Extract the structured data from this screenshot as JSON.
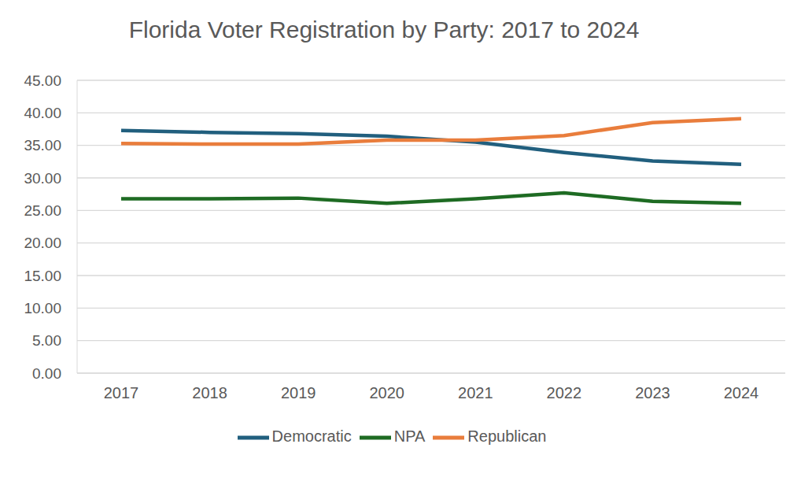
{
  "chart_data": {
    "type": "line",
    "title": "Florida Voter Registration by Party:  2017 to 2024",
    "categories": [
      "2017",
      "2018",
      "2019",
      "2020",
      "2021",
      "2022",
      "2023",
      "2024"
    ],
    "series": [
      {
        "name": "Democratic",
        "color": "#215f7e",
        "values": [
          37.3,
          37.0,
          36.8,
          36.4,
          35.5,
          33.9,
          32.6,
          32.1
        ]
      },
      {
        "name": "Republican",
        "color": "#e97d3c",
        "values": [
          35.3,
          35.2,
          35.2,
          35.8,
          35.8,
          36.5,
          38.5,
          39.1
        ]
      },
      {
        "name": "NPA",
        "color": "#1e6b23",
        "values": [
          26.8,
          26.8,
          26.9,
          26.1,
          26.8,
          27.7,
          26.4,
          26.1
        ]
      }
    ],
    "ylim": [
      0,
      45
    ],
    "yticks": [
      {
        "value": 0,
        "label": "0.00"
      },
      {
        "value": 5,
        "label": "5.00"
      },
      {
        "value": 10,
        "label": "10.00"
      },
      {
        "value": 15,
        "label": "15.00"
      },
      {
        "value": 20,
        "label": "20.00"
      },
      {
        "value": 25,
        "label": "25.00"
      },
      {
        "value": 30,
        "label": "30.00"
      },
      {
        "value": 35,
        "label": "35.00"
      },
      {
        "value": 40,
        "label": "40.00"
      },
      {
        "value": 45,
        "label": "45.00"
      }
    ],
    "grid": true,
    "legend": "bottom"
  }
}
